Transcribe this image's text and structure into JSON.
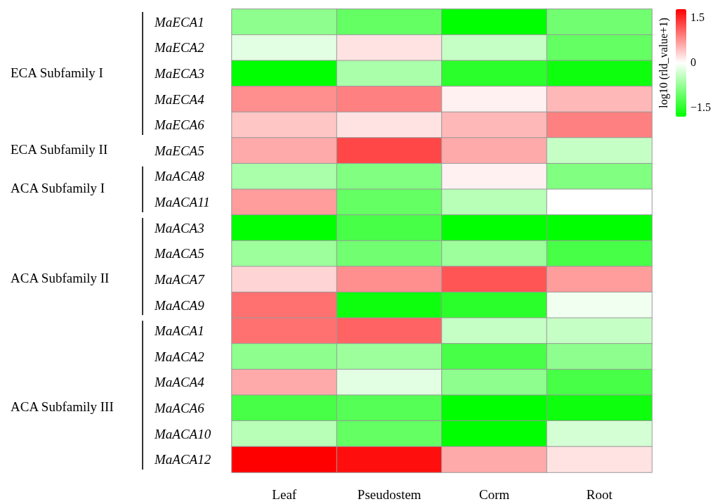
{
  "chart_data": {
    "type": "heatmap",
    "categories": [
      "Leaf",
      "Pseudostem",
      "Corm",
      "Root"
    ],
    "y_categories": [
      "MaECA1",
      "MaECA2",
      "MaECA3",
      "MaECA4",
      "MaECA6",
      "MaECA5",
      "MaACA8",
      "MaACA11",
      "MaACA3",
      "MaACA5",
      "MaACA7",
      "MaACA9",
      "MaACA1",
      "MaACA2",
      "MaACA4",
      "MaACA6",
      "MaACA10",
      "MaACA12"
    ],
    "cells": [
      [
        -0.8,
        -1.1,
        -1.8,
        -1.0
      ],
      [
        -0.2,
        0.2,
        -0.4,
        -1.1
      ],
      [
        -1.8,
        -0.6,
        -1.5,
        -1.7
      ],
      [
        0.8,
        0.9,
        0.1,
        0.5
      ],
      [
        0.4,
        0.2,
        0.5,
        0.9
      ],
      [
        0.6,
        1.3,
        0.6,
        -0.4
      ],
      [
        -0.6,
        -0.9,
        0.1,
        -0.9
      ],
      [
        0.7,
        -1.1,
        -0.5,
        0.0
      ],
      [
        -1.8,
        -1.3,
        -1.8,
        -1.8
      ],
      [
        -0.7,
        -1.0,
        -0.7,
        -1.3
      ],
      [
        0.3,
        0.8,
        1.2,
        0.7
      ],
      [
        1.0,
        -1.7,
        -1.5,
        -0.1
      ],
      [
        1.0,
        1.1,
        -0.4,
        -0.4
      ],
      [
        -0.8,
        -0.7,
        -1.3,
        -0.8
      ],
      [
        0.6,
        -0.2,
        -0.8,
        -1.3
      ],
      [
        -1.3,
        -1.2,
        -1.8,
        -1.7
      ],
      [
        -0.5,
        -1.1,
        -1.8,
        -0.3
      ],
      [
        1.8,
        1.7,
        0.6,
        0.2
      ]
    ],
    "clabel": "log10 (rld_value+1)",
    "clim": [
      -1.8,
      1.8
    ],
    "cticks": [
      {
        "value": -1.5,
        "label": "−1.5"
      },
      0,
      1.5
    ],
    "annotations": [
      "ECA Subfamily I",
      "ECA Subfamily II",
      "ACA Subfamily I",
      "ACA Subfamily II",
      "ACA Subfamily III"
    ]
  }
}
